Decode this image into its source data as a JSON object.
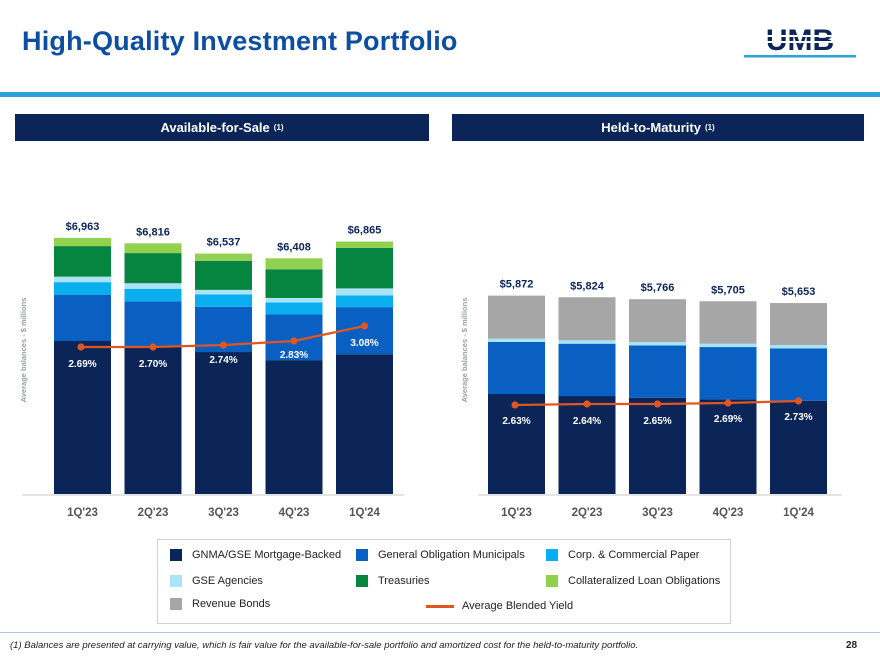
{
  "page": {
    "title": "High-Quality Investment Portfolio",
    "logo_text": "UMB",
    "footnote": "(1) Balances are presented at carrying value, which is fair value for the available-for-sale portfolio and amortized cost for the held-to-maturity portfolio.",
    "page_number": "28"
  },
  "panels": {
    "afs": {
      "title": "Available-for-Sale",
      "sup": "(1)"
    },
    "htm": {
      "title": "Held-to-Maturity",
      "sup": "(1)"
    }
  },
  "colors": {
    "gnma": "#0b2558",
    "municipals": "#0a5fc2",
    "corp": "#09aeef",
    "gse": "#a9e3f7",
    "treasuries": "#068540",
    "clo": "#92d050",
    "revenue": "#a6a6a6",
    "yield": "#e0561f",
    "title": "#0b4ea2"
  },
  "legend": [
    {
      "key": "gnma",
      "label": "GNMA/GSE Mortgage-Backed"
    },
    {
      "key": "municipals",
      "label": "General Obligation Municipals"
    },
    {
      "key": "corp",
      "label": "Corp. & Commercial Paper"
    },
    {
      "key": "gse",
      "label": "GSE Agencies"
    },
    {
      "key": "treasuries",
      "label": "Treasuries"
    },
    {
      "key": "clo",
      "label": "Collateralized Loan Obligations"
    },
    {
      "key": "revenue",
      "label": "Revenue Bonds"
    },
    {
      "key": "yield",
      "label": "Average Blended Yield"
    }
  ],
  "chart_data": [
    {
      "type": "bar",
      "stacked": true,
      "title": "Available-for-Sale",
      "ylabel": "Average balances - $ millions",
      "categories": [
        "1Q'23",
        "2Q'23",
        "3Q'23",
        "4Q'23",
        "1Q'24"
      ],
      "totals": [
        "$6,963",
        "$6,816",
        "$6,537",
        "$6,408",
        "$6,865"
      ],
      "total_values": [
        6963,
        6816,
        6537,
        6408,
        6865
      ],
      "ylim": [
        0,
        7200
      ],
      "series": [
        {
          "name": "GNMA/GSE Mortgage-Backed",
          "key": "gnma",
          "values": [
            4160,
            4010,
            3860,
            3640,
            3800
          ]
        },
        {
          "name": "General Obligation Municipals",
          "key": "municipals",
          "values": [
            1260,
            1230,
            1230,
            1240,
            1280
          ]
        },
        {
          "name": "Corp. & Commercial Paper",
          "key": "corp",
          "values": [
            340,
            340,
            340,
            330,
            320
          ]
        },
        {
          "name": "GSE Agencies",
          "key": "gse",
          "values": [
            150,
            150,
            120,
            120,
            190
          ]
        },
        {
          "name": "Treasuries",
          "key": "treasuries",
          "values": [
            830,
            820,
            790,
            780,
            1100
          ]
        },
        {
          "name": "Collateralized Loan Obligations",
          "key": "clo",
          "values": [
            223,
            266,
            197,
            298,
            175
          ]
        }
      ],
      "yield": {
        "name": "Average Blended Yield",
        "values": [
          2.69,
          2.7,
          2.74,
          2.83,
          3.08
        ],
        "labels": [
          "2.69%",
          "2.70%",
          "2.74%",
          "2.83%",
          "3.08%"
        ]
      }
    },
    {
      "type": "bar",
      "stacked": true,
      "title": "Held-to-Maturity",
      "ylabel": "Average balances - $ millions",
      "categories": [
        "1Q'23",
        "2Q'23",
        "3Q'23",
        "4Q'23",
        "1Q'24"
      ],
      "totals": [
        "$5,872",
        "$5,824",
        "$5,766",
        "$5,705",
        "$5,653"
      ],
      "total_values": [
        5872,
        5824,
        5766,
        5705,
        5653
      ],
      "ylim": [
        0,
        7200
      ],
      "series": [
        {
          "name": "GNMA/GSE Mortgage-Backed",
          "key": "gnma",
          "values": [
            2960,
            2900,
            2850,
            2800,
            2760
          ]
        },
        {
          "name": "General Obligation Municipals",
          "key": "municipals",
          "values": [
            1540,
            1550,
            1550,
            1550,
            1550
          ]
        },
        {
          "name": "GSE Agencies",
          "key": "gse",
          "values": [
            100,
            100,
            100,
            100,
            100
          ]
        },
        {
          "name": "Revenue Bonds",
          "key": "revenue",
          "values": [
            1272,
            1274,
            1266,
            1255,
            1243
          ]
        }
      ],
      "yield": {
        "name": "Average Blended Yield",
        "values": [
          2.63,
          2.64,
          2.65,
          2.69,
          2.73
        ],
        "labels": [
          "2.63%",
          "2.64%",
          "2.65%",
          "2.69%",
          "2.73%"
        ]
      }
    }
  ]
}
